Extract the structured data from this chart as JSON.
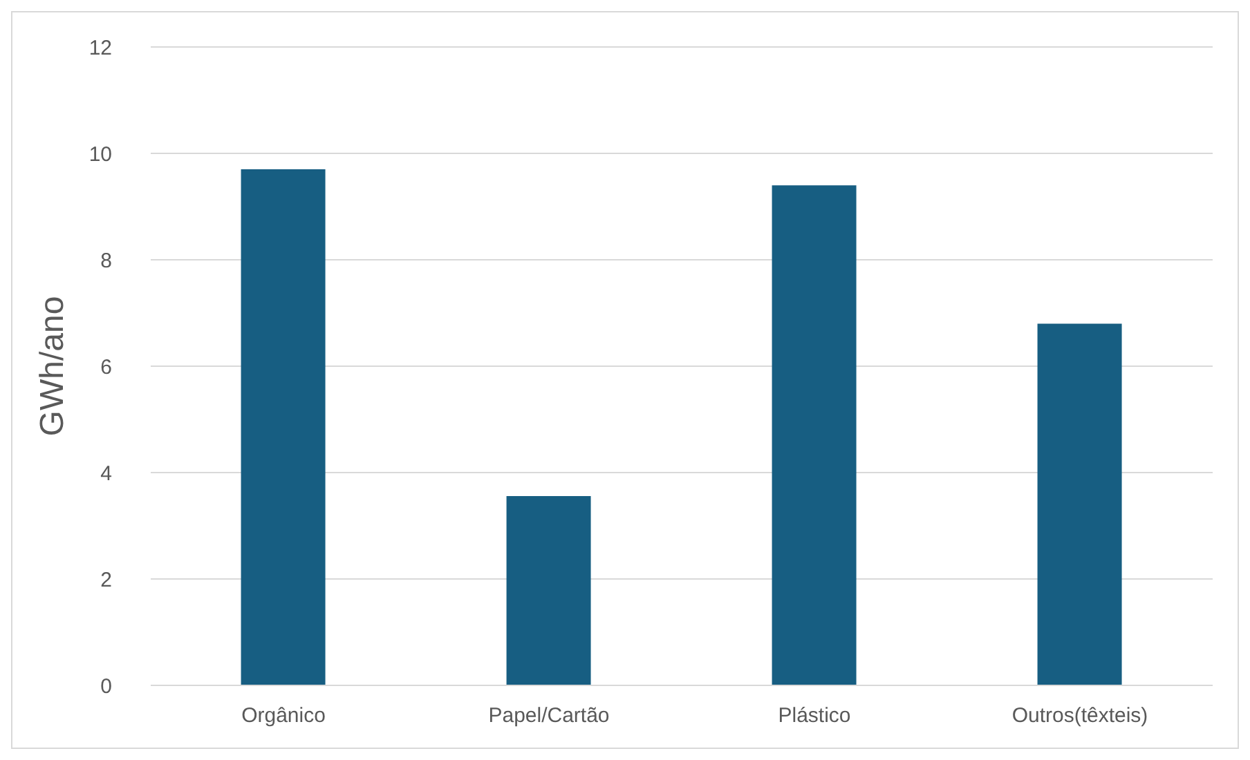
{
  "chart_data": {
    "type": "bar",
    "ylabel": "GWh/ano",
    "categories": [
      "Orgânico",
      "Papel/Cartão",
      "Plástico",
      "Outros(têxteis)"
    ],
    "values": [
      9.7,
      3.56,
      9.4,
      6.8
    ],
    "color": "#175e82",
    "ylim": [
      0,
      12
    ],
    "yticks": [
      0,
      2,
      4,
      6,
      8,
      10,
      12
    ],
    "grid": "y",
    "legend": false
  }
}
